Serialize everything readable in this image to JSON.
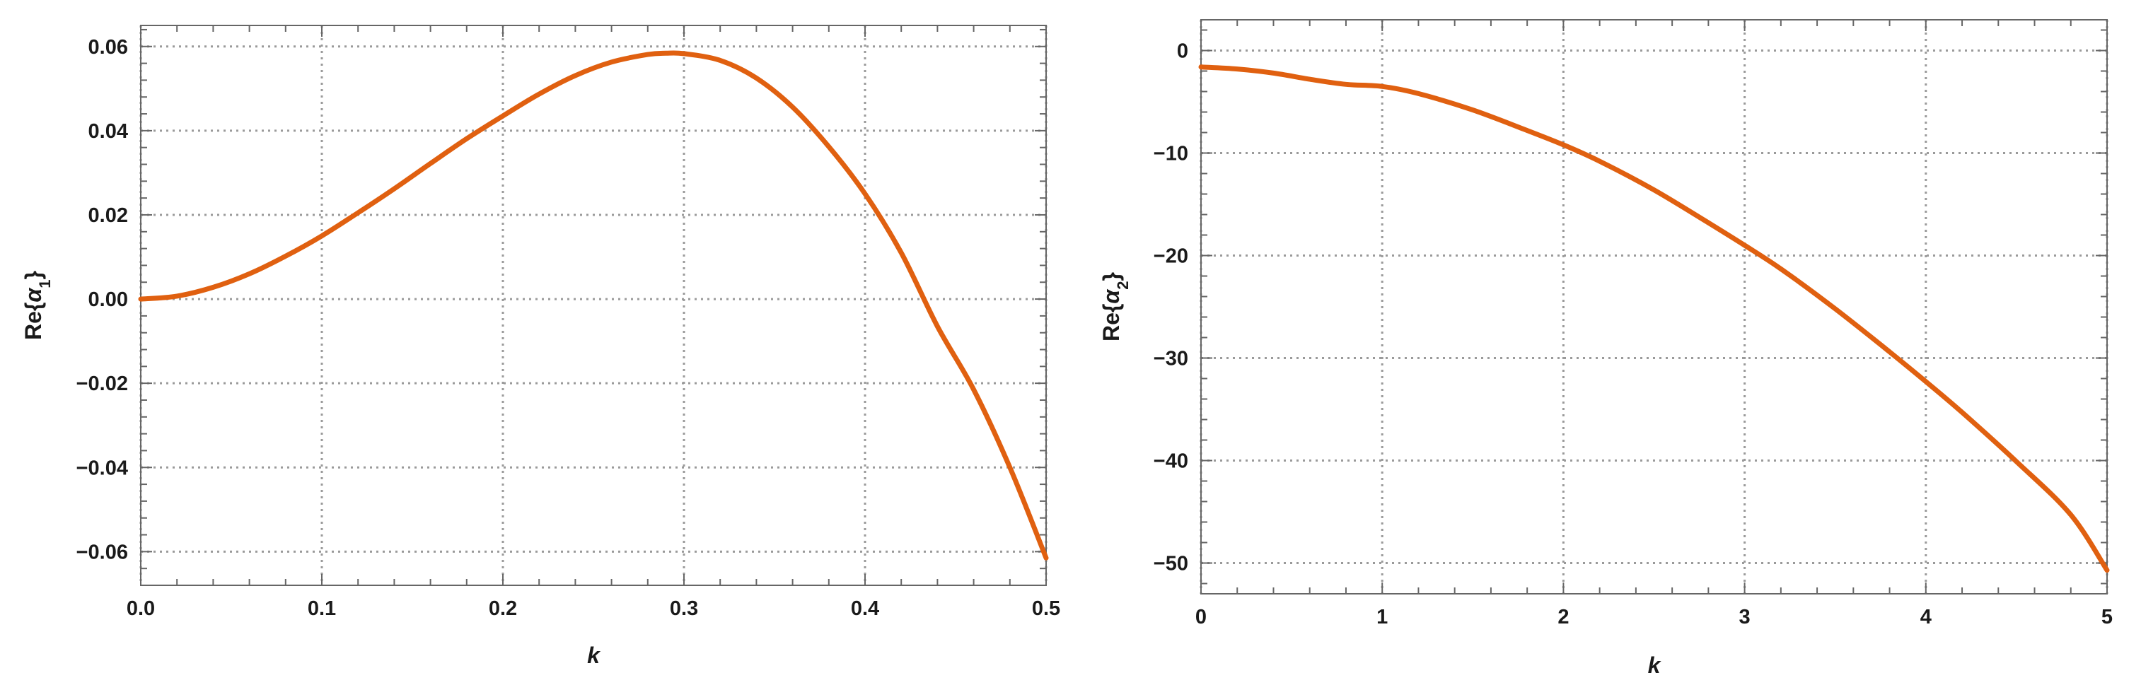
{
  "colors": {
    "series": "#e06010"
  },
  "chart_data": [
    {
      "type": "line",
      "xlabel": "k",
      "ylabel": {
        "base": "Re{",
        "symbol": "α",
        "sub": "1",
        "close": "}"
      },
      "xlim": [
        0,
        0.5
      ],
      "ylim": [
        -0.068,
        0.065
      ],
      "xticks": [
        0.0,
        0.1,
        0.2,
        0.3,
        0.4,
        0.5
      ],
      "xtick_labels": [
        "0.0",
        "0.1",
        "0.2",
        "0.3",
        "0.4",
        "0.5"
      ],
      "yticks": [
        -0.06,
        -0.04,
        -0.02,
        0.0,
        0.02,
        0.04,
        0.06
      ],
      "ytick_labels": [
        "−0.06",
        "−0.04",
        "−0.02",
        "0.00",
        "0.02",
        "0.04",
        "0.06"
      ],
      "grid": true,
      "series": [
        {
          "x": [
            0,
            0.02,
            0.04,
            0.06,
            0.08,
            0.1,
            0.12,
            0.14,
            0.16,
            0.18,
            0.2,
            0.22,
            0.24,
            0.26,
            0.28,
            0.29,
            0.3,
            0.32,
            0.34,
            0.36,
            0.38,
            0.4,
            0.42,
            0.44,
            0.46,
            0.48,
            0.5
          ],
          "y": [
            0,
            0.0007,
            0.0028,
            0.006,
            0.0102,
            0.015,
            0.0205,
            0.0262,
            0.0322,
            0.0381,
            0.0435,
            0.0487,
            0.0531,
            0.0563,
            0.0581,
            0.0584,
            0.0583,
            0.0567,
            0.0525,
            0.0456,
            0.0362,
            0.025,
            0.011,
            -0.0065,
            -0.0215,
            -0.04,
            -0.0615
          ]
        }
      ]
    },
    {
      "type": "line",
      "xlabel": "k",
      "ylabel": {
        "base": "Re{",
        "symbol": "α",
        "sub": "2",
        "close": "}"
      },
      "xlim": [
        0,
        5
      ],
      "ylim": [
        -53,
        3
      ],
      "xticks": [
        0,
        1,
        2,
        3,
        4,
        5
      ],
      "xtick_labels": [
        "0",
        "1",
        "2",
        "3",
        "4",
        "5"
      ],
      "yticks": [
        -50,
        -40,
        -30,
        -20,
        -10,
        0
      ],
      "ytick_labels": [
        "−50",
        "−40",
        "−30",
        "−20",
        "−10",
        "0"
      ],
      "grid": true,
      "series": [
        {
          "x": [
            0,
            0.2,
            0.4,
            0.6,
            0.8,
            1.0,
            1.2,
            1.5,
            1.8,
            2.0,
            2.2,
            2.5,
            2.8,
            3.0,
            3.2,
            3.5,
            3.8,
            4.0,
            4.2,
            4.5,
            4.8,
            5.0
          ],
          "y": [
            -1.6,
            -1.8,
            -2.2,
            -2.8,
            -3.3,
            -3.5,
            -4.2,
            -5.8,
            -7.8,
            -9.2,
            -10.8,
            -13.6,
            -16.8,
            -19.0,
            -21.3,
            -25.2,
            -29.4,
            -32.3,
            -35.3,
            -40.1,
            -45.3,
            -50.7
          ]
        }
      ]
    }
  ]
}
